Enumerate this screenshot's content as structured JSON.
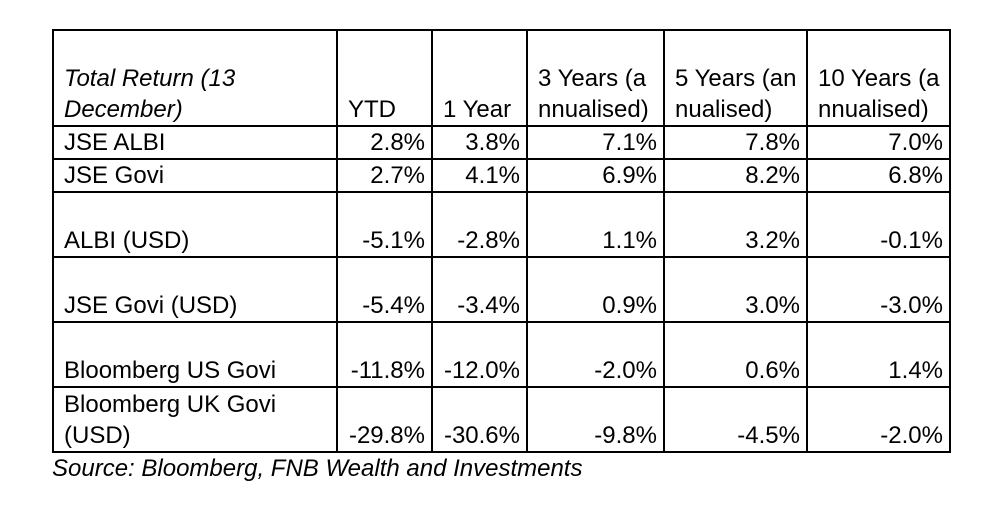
{
  "table": {
    "headers": {
      "label": "Total Return (13 December)",
      "ytd": "YTD",
      "one_year": "1 Year",
      "three_years": "3 Years (annualised)",
      "five_years": "5 Years (annualised)",
      "ten_years": "10 Years (annualised)"
    },
    "rows": [
      {
        "label": "JSE ALBI",
        "ytd": "2.8%",
        "one_year": "3.8%",
        "three_years": "7.1%",
        "five_years": "7.8%",
        "ten_years": "7.0%"
      },
      {
        "label": "JSE Govi",
        "ytd": "2.7%",
        "one_year": "4.1%",
        "three_years": "6.9%",
        "five_years": "8.2%",
        "ten_years": "6.8%"
      },
      {
        "label": "ALBI (USD)",
        "ytd": "-5.1%",
        "one_year": "-2.8%",
        "three_years": "1.1%",
        "five_years": "3.2%",
        "ten_years": "-0.1%"
      },
      {
        "label": "JSE Govi (USD)",
        "ytd": "-5.4%",
        "one_year": "-3.4%",
        "three_years": "0.9%",
        "five_years": "3.0%",
        "ten_years": "-3.0%"
      },
      {
        "label": "Bloomberg US Govi",
        "ytd": "-11.8%",
        "one_year": "-12.0%",
        "three_years": "-2.0%",
        "five_years": "0.6%",
        "ten_years": "1.4%"
      },
      {
        "label": "Bloomberg UK Govi (USD)",
        "ytd": "-29.8%",
        "one_year": "-30.6%",
        "three_years": "-9.8%",
        "five_years": "-4.5%",
        "ten_years": "-2.0%"
      }
    ]
  },
  "source": "Source: Bloomberg, FNB Wealth and Investments"
}
